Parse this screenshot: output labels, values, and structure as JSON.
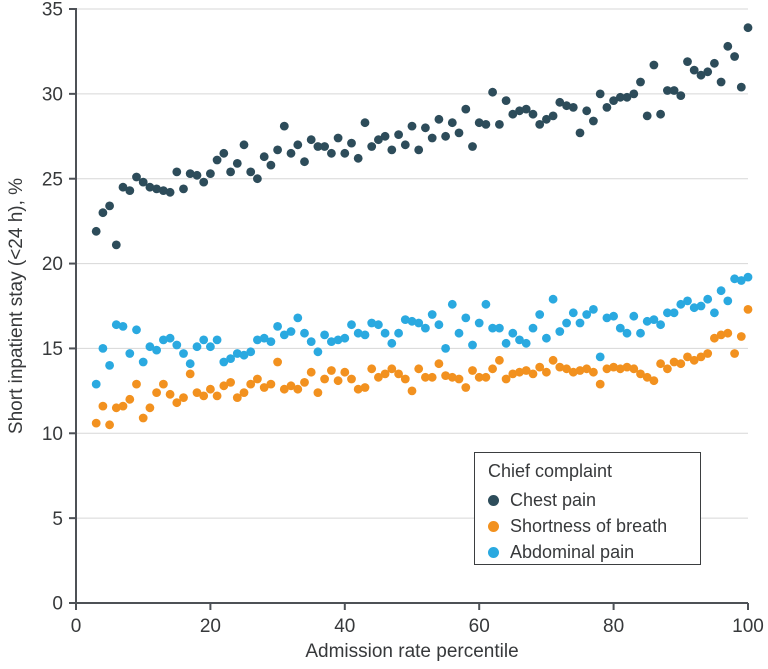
{
  "legend": {
    "title": "Chief complaint",
    "entries": [
      {
        "label": "Chest pain",
        "color": "#2d4c5a"
      },
      {
        "label": "Shortness of breath",
        "color": "#f2911f"
      },
      {
        "label": "Abdominal pain",
        "color": "#2aa9e0"
      }
    ]
  },
  "style": {
    "axis_color": "#4d5156",
    "grid_color": "#d7d7d7",
    "tick_text_color": "#37393b",
    "point_radius": 4.4
  },
  "chart_data": {
    "type": "scatter",
    "title": "",
    "xlabel": "Admission rate percentile",
    "ylabel": "Short inpatient stay (<24 h), %",
    "xlim": [
      0,
      100
    ],
    "ylim": [
      0,
      35
    ],
    "xticks": [
      0,
      20,
      40,
      60,
      80,
      100
    ],
    "yticks": [
      0,
      5,
      10,
      15,
      20,
      25,
      30,
      35
    ],
    "grid": "horizontal",
    "legend_position": "lower-right",
    "x": [
      3,
      4,
      5,
      6,
      7,
      8,
      9,
      10,
      11,
      12,
      13,
      14,
      15,
      16,
      17,
      18,
      19,
      20,
      21,
      22,
      23,
      24,
      25,
      26,
      27,
      28,
      29,
      30,
      31,
      32,
      33,
      34,
      35,
      36,
      37,
      38,
      39,
      40,
      41,
      42,
      43,
      44,
      45,
      46,
      47,
      48,
      49,
      50,
      51,
      52,
      53,
      54,
      55,
      56,
      57,
      58,
      59,
      60,
      61,
      62,
      63,
      64,
      65,
      66,
      67,
      68,
      69,
      70,
      71,
      72,
      73,
      74,
      75,
      76,
      77,
      78,
      79,
      80,
      81,
      82,
      83,
      84,
      85,
      86,
      87,
      88,
      89,
      90,
      91,
      92,
      93,
      94,
      95,
      96,
      97,
      98,
      99,
      100
    ],
    "series": [
      {
        "name": "Chest pain",
        "color": "#2d4c5a",
        "values": [
          21.9,
          23.0,
          23.4,
          21.1,
          24.5,
          24.3,
          25.1,
          24.8,
          24.5,
          24.4,
          24.3,
          24.2,
          25.4,
          24.4,
          25.3,
          25.2,
          24.8,
          25.3,
          26.1,
          26.5,
          25.4,
          25.9,
          27.0,
          25.4,
          25.0,
          26.3,
          25.8,
          26.7,
          28.1,
          26.5,
          27.0,
          26.0,
          27.3,
          26.9,
          26.9,
          26.5,
          27.4,
          26.5,
          27.1,
          26.2,
          28.3,
          26.9,
          27.3,
          27.5,
          26.7,
          27.6,
          27.0,
          28.1,
          26.7,
          28.0,
          27.4,
          28.5,
          27.5,
          28.3,
          27.7,
          29.1,
          26.9,
          28.3,
          28.2,
          30.1,
          28.2,
          29.6,
          28.8,
          29.0,
          29.1,
          28.8,
          28.2,
          28.5,
          28.7,
          29.5,
          29.3,
          29.2,
          27.7,
          29.0,
          28.4,
          30.0,
          29.2,
          29.6,
          29.8,
          29.8,
          30.0,
          30.7,
          28.7,
          31.7,
          28.8,
          30.2,
          30.2,
          29.9,
          31.9,
          31.4,
          31.1,
          31.3,
          31.8,
          30.7,
          32.8,
          32.2,
          30.4,
          33.9
        ]
      },
      {
        "name": "Shortness of breath",
        "color": "#f2911f",
        "values": [
          10.6,
          11.6,
          10.5,
          11.5,
          11.6,
          12.0,
          12.9,
          10.9,
          11.5,
          12.4,
          12.9,
          12.3,
          11.8,
          12.1,
          13.5,
          12.4,
          12.2,
          12.6,
          12.2,
          12.8,
          13.0,
          12.1,
          12.4,
          12.9,
          13.2,
          12.7,
          12.9,
          14.2,
          12.6,
          12.8,
          12.6,
          13.0,
          13.6,
          12.4,
          13.2,
          13.7,
          13.1,
          13.6,
          13.2,
          12.6,
          12.7,
          13.8,
          13.3,
          13.5,
          13.8,
          13.5,
          13.2,
          12.5,
          13.8,
          13.3,
          13.3,
          14.1,
          13.4,
          13.3,
          13.2,
          12.7,
          13.7,
          13.3,
          13.3,
          13.8,
          14.3,
          13.2,
          13.5,
          13.6,
          13.7,
          13.5,
          13.9,
          13.6,
          14.3,
          13.9,
          13.8,
          13.6,
          13.7,
          13.8,
          13.6,
          12.9,
          13.8,
          13.9,
          13.8,
          13.9,
          13.8,
          13.5,
          13.3,
          13.1,
          14.1,
          13.8,
          14.2,
          14.1,
          14.5,
          14.3,
          14.5,
          14.7,
          15.6,
          15.8,
          15.9,
          14.7,
          15.7,
          17.3
        ]
      },
      {
        "name": "Abdominal pain",
        "color": "#2aa9e0",
        "values": [
          12.9,
          15.0,
          14.0,
          16.4,
          16.3,
          14.7,
          16.1,
          14.2,
          15.1,
          14.9,
          15.5,
          15.6,
          15.2,
          14.7,
          14.1,
          15.1,
          15.5,
          15.1,
          15.5,
          14.2,
          14.4,
          14.7,
          14.6,
          14.8,
          15.5,
          15.6,
          15.4,
          16.3,
          15.8,
          16.0,
          16.8,
          15.9,
          15.4,
          14.8,
          15.8,
          15.4,
          15.5,
          15.6,
          16.4,
          15.9,
          15.8,
          16.5,
          16.4,
          15.9,
          15.3,
          15.9,
          16.7,
          16.6,
          16.5,
          16.2,
          17.0,
          16.4,
          15.0,
          17.6,
          15.9,
          16.8,
          15.2,
          16.5,
          17.6,
          16.2,
          16.2,
          15.3,
          15.9,
          15.5,
          15.3,
          16.2,
          17.0,
          15.6,
          17.9,
          16.0,
          16.5,
          17.1,
          16.5,
          17.0,
          17.3,
          14.5,
          16.8,
          16.9,
          16.2,
          15.9,
          16.9,
          15.9,
          16.6,
          16.7,
          16.4,
          17.1,
          17.1,
          17.6,
          17.8,
          17.4,
          17.5,
          17.9,
          17.1,
          18.4,
          17.8,
          19.1,
          19.0,
          19.2
        ]
      }
    ]
  }
}
